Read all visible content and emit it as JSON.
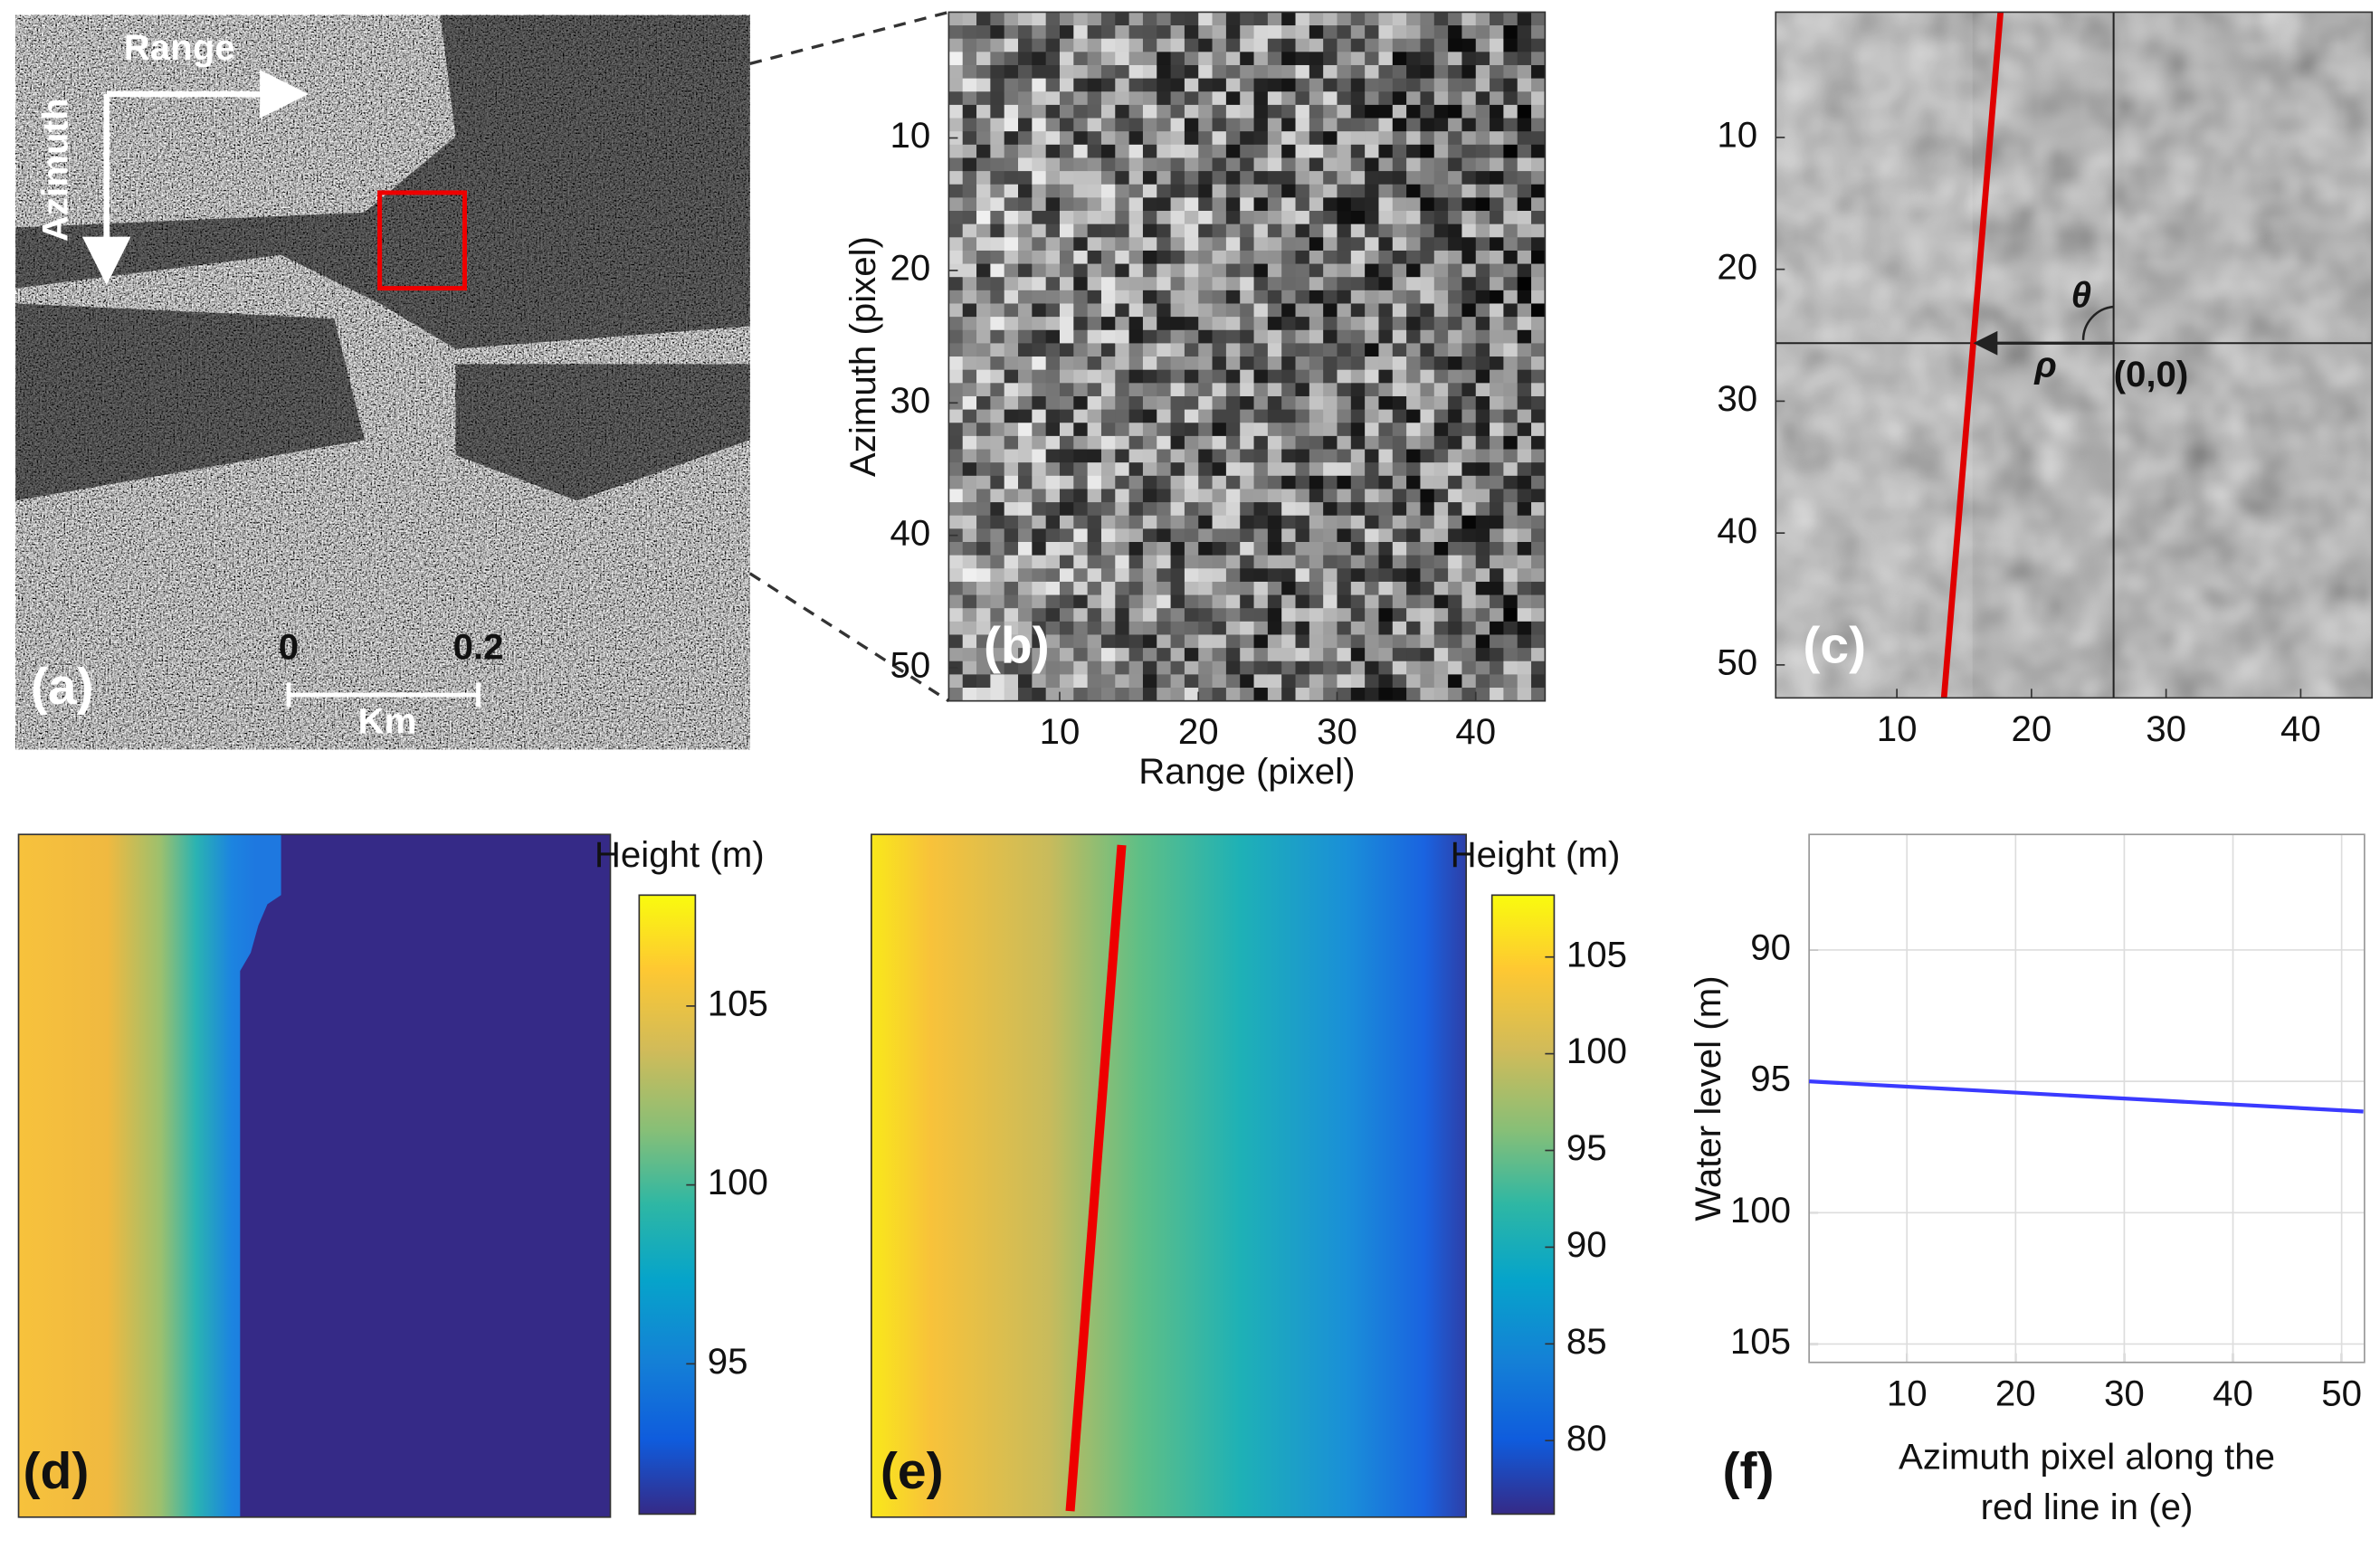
{
  "chart_data": [
    {
      "type": "image",
      "label": "(a)",
      "range_label": "Range",
      "azimuth_label": "Azimuth",
      "scalebar": {
        "ticks": [
          0,
          0.2
        ],
        "unit": "Km"
      }
    },
    {
      "type": "heatmap",
      "label": "(b)",
      "xlabel": "Range (pixel)",
      "ylabel": "Azimuth (pixel)",
      "xlim": [
        2,
        45
      ],
      "ylim": [
        0.5,
        52.5
      ],
      "xticks": [
        10,
        20,
        30,
        40
      ],
      "yticks": [
        10,
        20,
        30,
        40,
        50
      ]
    },
    {
      "type": "heatmap",
      "label": "(c)",
      "xlim": [
        1,
        45.3
      ],
      "ylim": [
        0.5,
        52.5
      ],
      "xticks": [
        10,
        20,
        30,
        40
      ],
      "yticks": [
        10,
        20,
        30,
        40,
        50
      ],
      "line": {
        "x": [
          17.7,
          13.5
        ],
        "y": [
          0.5,
          52.5
        ],
        "color": "#e00000"
      },
      "crosshair": {
        "x": 26.1,
        "y": 25.6
      },
      "annotations": {
        "theta": "θ",
        "rho": "ρ",
        "origin": "(0,0)"
      }
    },
    {
      "type": "heatmap",
      "label": "(d)",
      "clabel": "Height (m)",
      "clim": [
        90.8,
        108.1
      ],
      "cticks": [
        95,
        100,
        105
      ]
    },
    {
      "type": "heatmap",
      "label": "(e)",
      "clabel": "Height (m)",
      "clim": [
        76.2,
        108.2
      ],
      "cticks": [
        80,
        85,
        90,
        95,
        100,
        105
      ]
    },
    {
      "type": "line",
      "label": "(f)",
      "ylabel": "Water level (m)",
      "xlabel": [
        "Azimuth pixel along the",
        "red line in (e)"
      ],
      "x": [
        1,
        52
      ],
      "values": [
        95.0,
        96.15
      ],
      "color": "#3a3aff",
      "xlim": [
        1,
        52.1
      ],
      "ylim": [
        85.6,
        105.7
      ],
      "xticks": [
        10,
        20,
        30,
        40,
        50
      ],
      "yticks": [
        90,
        95,
        100,
        105
      ],
      "grid": true
    }
  ]
}
